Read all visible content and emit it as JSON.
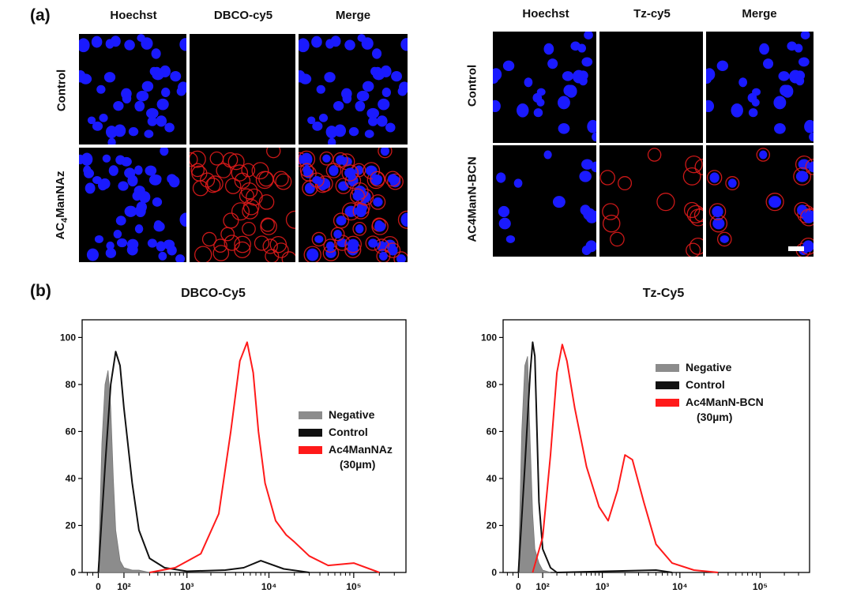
{
  "figure": {
    "panel_a_label": "(a)",
    "panel_b_label": "(b)",
    "left_columns": [
      "Hoechst",
      "DBCO-cy5",
      "Merge"
    ],
    "right_columns": [
      "Hoechst",
      "Tz-cy5",
      "Merge"
    ],
    "left_rows": [
      "Control",
      "AC4ManNAz"
    ],
    "left_row2_main": "AC",
    "left_row2_sub": "4",
    "left_row2_rest": "ManNAz",
    "right_rows": [
      "Control",
      "AC4ManN-BCN"
    ]
  },
  "colors": {
    "nucleus": "#1a1aff",
    "membrane": "#e01b1b",
    "negative_fill": "#8c8c8c",
    "control_line": "#111111",
    "treated_line": "#ff1a1a"
  },
  "chart_data": [
    {
      "type": "area",
      "title": "DBCO-Cy5",
      "x_scale": "biexponential",
      "x_ticks": [
        "0",
        "10²",
        "10³",
        "10⁴",
        "10⁵"
      ],
      "y_ticks": [
        "0",
        "20",
        "40",
        "60",
        "80",
        "100"
      ],
      "ylim": [
        0,
        100
      ],
      "legend_position": "right",
      "series": [
        {
          "name": "Negative",
          "style": "filled",
          "x": [
            0,
            10,
            20,
            30,
            40,
            50,
            60,
            80,
            100,
            150,
            200,
            300
          ],
          "y": [
            0,
            55,
            80,
            86,
            70,
            40,
            18,
            5,
            2,
            1,
            1,
            0
          ]
        },
        {
          "name": "Control",
          "style": "line",
          "x": [
            0,
            20,
            40,
            60,
            80,
            100,
            150,
            200,
            300,
            500,
            1000,
            3000,
            5000,
            8000,
            15000,
            30000
          ],
          "y": [
            0,
            45,
            80,
            94,
            88,
            70,
            38,
            18,
            6,
            2,
            0.5,
            1,
            2,
            5,
            1.5,
            0
          ]
        },
        {
          "name": "Ac4ManNAz",
          "name2": "(30µm)",
          "style": "line",
          "x": [
            300,
            700,
            1500,
            2500,
            3500,
            4500,
            5500,
            6500,
            7500,
            9000,
            12000,
            16000,
            20000,
            30000,
            50000,
            100000,
            200000
          ],
          "y": [
            0,
            2,
            8,
            25,
            60,
            90,
            98,
            85,
            60,
            38,
            22,
            16,
            13,
            7,
            3,
            4,
            0
          ]
        }
      ]
    },
    {
      "type": "area",
      "title": "Tz-Cy5",
      "x_scale": "biexponential",
      "x_ticks": [
        "0",
        "10²",
        "10³",
        "10⁴",
        "10⁵"
      ],
      "y_ticks": [
        "0",
        "20",
        "40",
        "60",
        "80",
        "100"
      ],
      "ylim": [
        0,
        100
      ],
      "legend_position": "top-right",
      "series": [
        {
          "name": "Negative",
          "style": "filled",
          "x": [
            0,
            10,
            20,
            30,
            40,
            50,
            60,
            80,
            100,
            150
          ],
          "y": [
            0,
            60,
            88,
            92,
            55,
            25,
            10,
            4,
            1,
            0
          ]
        },
        {
          "name": "Control",
          "style": "line",
          "x": [
            0,
            20,
            40,
            50,
            60,
            70,
            80,
            100,
            150,
            200,
            5000,
            8000
          ],
          "y": [
            0,
            45,
            85,
            98,
            92,
            60,
            30,
            10,
            2,
            0,
            1,
            0
          ]
        },
        {
          "name": "Ac4ManN-BCN",
          "name2": "(30µm)",
          "style": "line",
          "x": [
            50,
            100,
            150,
            200,
            250,
            300,
            400,
            600,
            900,
            1200,
            1600,
            2000,
            2500,
            3500,
            5000,
            8000,
            15000,
            30000
          ],
          "y": [
            0,
            15,
            50,
            85,
            97,
            90,
            70,
            45,
            28,
            22,
            35,
            50,
            48,
            30,
            12,
            4,
            1,
            0
          ]
        }
      ]
    }
  ]
}
